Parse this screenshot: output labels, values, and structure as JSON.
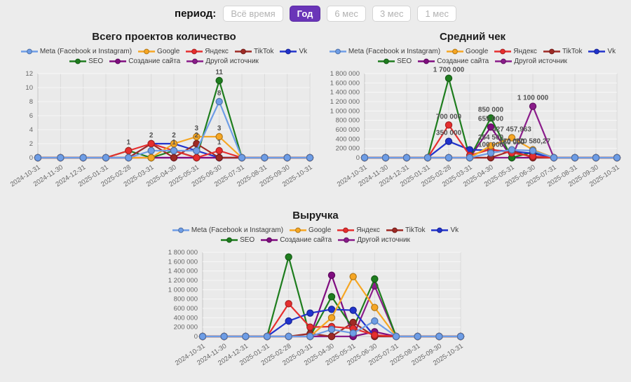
{
  "period_bar": {
    "label": "период:",
    "buttons": [
      {
        "label": "Всё время",
        "selected": false
      },
      {
        "label": "Год",
        "selected": true
      },
      {
        "label": "6 мес",
        "selected": false
      },
      {
        "label": "3 мес",
        "selected": false
      },
      {
        "label": "1 мес",
        "selected": false
      }
    ]
  },
  "colors": {
    "page_bg": "#ececec",
    "selected_button": "#6a35b8",
    "grid_vertical": "#d9d9d9",
    "grid_horizontal": "#f7f7f7",
    "axis_text": "#666666",
    "data_label": "#525252"
  },
  "chart_data": [
    {
      "type": "line",
      "title": "Всего проектов количество",
      "xlabel": "",
      "ylabel": "",
      "ylim": [
        0,
        12
      ],
      "ytick_step": 2,
      "grid": true,
      "legend_position": "top",
      "categories": [
        "2024-10-31",
        "2024-11-30",
        "2024-12-31",
        "2025-01-31",
        "2025-02-28",
        "2025-03-31",
        "2025-04-30",
        "2025-05-31",
        "2025-06-30",
        "2025-07-31",
        "2025-08-31",
        "2025-09-30",
        "2025-10-31"
      ],
      "series": [
        {
          "name": "Meta (Facebook и Instagram)",
          "color": "#6e9de6",
          "values": [
            0,
            0,
            0,
            0,
            0,
            1,
            1,
            1,
            8,
            0,
            0,
            0,
            0
          ],
          "labels": [
            null,
            null,
            null,
            null,
            null,
            null,
            "1",
            null,
            "8",
            null,
            null,
            null,
            null
          ]
        },
        {
          "name": "Google",
          "color": "#f6a623",
          "values": [
            0,
            0,
            0,
            0,
            0,
            0,
            2,
            3,
            3,
            0,
            0,
            0,
            0
          ],
          "labels": [
            null,
            null,
            null,
            null,
            null,
            null,
            null,
            "3",
            "3",
            null,
            null,
            null,
            null
          ]
        },
        {
          "name": "Яндекс",
          "color": "#e62e2e",
          "values": [
            0,
            0,
            0,
            0,
            1,
            2,
            1,
            0,
            1,
            0,
            0,
            0,
            0
          ],
          "labels": [
            null,
            null,
            null,
            null,
            "1",
            "2",
            null,
            null,
            "1",
            null,
            null,
            null,
            null
          ]
        },
        {
          "name": "TikTok",
          "color": "#9e2a25",
          "values": [
            0,
            0,
            0,
            0,
            0,
            2,
            0,
            2,
            0,
            0,
            0,
            0,
            0
          ],
          "labels": [
            null,
            null,
            null,
            null,
            null,
            null,
            null,
            "2",
            null,
            null,
            null,
            null,
            null
          ]
        },
        {
          "name": "Vk",
          "color": "#2133cc",
          "values": [
            0,
            0,
            0,
            0,
            0,
            2,
            2,
            1,
            0,
            0,
            0,
            0,
            0
          ],
          "labels": [
            null,
            null,
            null,
            null,
            null,
            null,
            "2",
            null,
            null,
            null,
            null,
            null,
            null
          ]
        },
        {
          "name": "SEO",
          "color": "#1e7d1e",
          "values": [
            0,
            0,
            0,
            0,
            1,
            0,
            1,
            0,
            11,
            0,
            0,
            0,
            0
          ],
          "labels": [
            null,
            null,
            null,
            null,
            null,
            null,
            null,
            null,
            "11",
            null,
            null,
            null,
            null
          ]
        },
        {
          "name": "Создание сайта",
          "color": "#800d80",
          "values": [
            0,
            0,
            0,
            0,
            0,
            0,
            0,
            0,
            0,
            0,
            0,
            0,
            0
          ],
          "labels": [
            null,
            null,
            null,
            null,
            null,
            null,
            null,
            null,
            null,
            null,
            null,
            null,
            null
          ]
        },
        {
          "name": "Другой источник",
          "color": "#8a1c8a",
          "values": [
            0,
            0,
            0,
            0,
            0,
            0,
            0,
            0,
            0,
            0,
            0,
            0,
            0
          ],
          "labels": [
            null,
            null,
            null,
            null,
            null,
            null,
            null,
            null,
            null,
            null,
            null,
            null,
            null
          ]
        }
      ]
    },
    {
      "type": "line",
      "title": "Средний чек",
      "xlabel": "",
      "ylabel": "",
      "ylim": [
        0,
        1800000
      ],
      "ytick_step": 200000,
      "grid": true,
      "legend_position": "top",
      "categories": [
        "2024-10-31",
        "2024-11-30",
        "2024-12-31",
        "2025-01-31",
        "2025-02-28",
        "2025-03-31",
        "2025-04-30",
        "2025-05-31",
        "2025-06-30",
        "2025-07-31",
        "2025-08-31",
        "2025-09-30",
        "2025-10-31"
      ],
      "series": [
        {
          "name": "Meta (Facebook и Instagram)",
          "color": "#6e9de6",
          "values": [
            0,
            0,
            0,
            0,
            0,
            0,
            100000,
            170000,
            150000,
            0,
            0,
            0,
            0
          ],
          "labels": [
            null,
            null,
            null,
            null,
            null,
            null,
            "100 000",
            "170 000",
            null,
            null,
            null,
            null,
            null
          ]
        },
        {
          "name": "Google",
          "color": "#f6a623",
          "values": [
            0,
            0,
            0,
            0,
            0,
            0,
            254500,
            427457.963,
            170580.27,
            0,
            0,
            0,
            0
          ],
          "labels": [
            null,
            null,
            null,
            null,
            null,
            null,
            "254 500",
            "427 457,963",
            "170 580,27",
            null,
            null,
            null,
            null
          ]
        },
        {
          "name": "Яндекс",
          "color": "#e62e2e",
          "values": [
            0,
            0,
            0,
            0,
            700000,
            50000,
            180000,
            100000,
            30000,
            0,
            0,
            0,
            0
          ],
          "labels": [
            null,
            null,
            null,
            null,
            "700 000",
            null,
            null,
            null,
            null,
            null,
            null,
            null,
            null
          ]
        },
        {
          "name": "TikTok",
          "color": "#9e2a25",
          "values": [
            0,
            0,
            0,
            0,
            0,
            0,
            0,
            150000,
            0,
            0,
            0,
            0,
            0
          ],
          "labels": [
            null,
            null,
            null,
            null,
            null,
            null,
            null,
            "150 000",
            null,
            null,
            null,
            null,
            null
          ]
        },
        {
          "name": "Vk",
          "color": "#2133cc",
          "values": [
            0,
            0,
            0,
            0,
            350000,
            170000,
            160000,
            140000,
            90000,
            0,
            0,
            0,
            0
          ],
          "labels": [
            null,
            null,
            null,
            null,
            "350 000",
            null,
            null,
            null,
            null,
            null,
            null,
            null,
            null
          ]
        },
        {
          "name": "SEO",
          "color": "#1e7d1e",
          "values": [
            0,
            0,
            0,
            0,
            1700000,
            0,
            850000,
            0,
            120000,
            0,
            0,
            0,
            0
          ],
          "labels": [
            null,
            null,
            null,
            null,
            "1 700 000",
            null,
            "850 000",
            null,
            null,
            null,
            null,
            null,
            null
          ]
        },
        {
          "name": "Создание сайта",
          "color": "#800d80",
          "values": [
            0,
            0,
            0,
            0,
            0,
            0,
            655000,
            0,
            0,
            0,
            0,
            0,
            0
          ],
          "labels": [
            null,
            null,
            null,
            null,
            null,
            null,
            "655 000",
            null,
            null,
            null,
            null,
            null,
            null
          ]
        },
        {
          "name": "Другой источник",
          "color": "#8a1c8a",
          "values": [
            0,
            0,
            0,
            0,
            0,
            0,
            0,
            0,
            1100000,
            0,
            0,
            0,
            0
          ],
          "labels": [
            null,
            null,
            null,
            null,
            null,
            null,
            null,
            null,
            "1 100 000",
            null,
            null,
            null,
            null
          ]
        }
      ]
    },
    {
      "type": "line",
      "title": "Выручка",
      "xlabel": "",
      "ylabel": "",
      "ylim": [
        0,
        1800000
      ],
      "ytick_step": 200000,
      "grid": true,
      "legend_position": "top",
      "categories": [
        "2024-10-31",
        "2024-11-30",
        "2024-12-31",
        "2025-01-31",
        "2025-02-28",
        "2025-03-31",
        "2025-04-30",
        "2025-05-31",
        "2025-06-30",
        "2025-07-31",
        "2025-08-31",
        "2025-09-30",
        "2025-10-31"
      ],
      "series": [
        {
          "name": "Meta (Facebook и Instagram)",
          "color": "#6e9de6",
          "values": [
            0,
            0,
            0,
            0,
            0,
            0,
            150000,
            70000,
            330000,
            0,
            0,
            0,
            0
          ],
          "labels": [
            null,
            null,
            null,
            null,
            null,
            null,
            null,
            null,
            null,
            null,
            null,
            null,
            null
          ]
        },
        {
          "name": "Google",
          "color": "#f6a623",
          "values": [
            0,
            0,
            0,
            0,
            0,
            0,
            400000,
            1280000,
            620000,
            0,
            0,
            0,
            0
          ],
          "labels": [
            null,
            null,
            null,
            null,
            null,
            null,
            null,
            null,
            null,
            null,
            null,
            null,
            null
          ]
        },
        {
          "name": "Яндекс",
          "color": "#e62e2e",
          "values": [
            0,
            0,
            0,
            0,
            700000,
            200000,
            210000,
            170000,
            30000,
            0,
            0,
            0,
            0
          ],
          "labels": [
            null,
            null,
            null,
            null,
            null,
            null,
            null,
            null,
            null,
            null,
            null,
            null,
            null
          ]
        },
        {
          "name": "TikTok",
          "color": "#9e2a25",
          "values": [
            0,
            0,
            0,
            0,
            0,
            60000,
            0,
            300000,
            0,
            0,
            0,
            0,
            0
          ],
          "labels": [
            null,
            null,
            null,
            null,
            null,
            null,
            null,
            null,
            null,
            null,
            null,
            null,
            null
          ]
        },
        {
          "name": "Vk",
          "color": "#2133cc",
          "values": [
            0,
            0,
            0,
            0,
            330000,
            500000,
            580000,
            560000,
            0,
            0,
            0,
            0,
            0
          ],
          "labels": [
            null,
            null,
            null,
            null,
            null,
            null,
            null,
            null,
            null,
            null,
            null,
            null,
            null
          ]
        },
        {
          "name": "SEO",
          "color": "#1e7d1e",
          "values": [
            0,
            0,
            0,
            0,
            1700000,
            0,
            850000,
            170000,
            1230000,
            0,
            0,
            0,
            0
          ],
          "labels": [
            null,
            null,
            null,
            null,
            null,
            null,
            null,
            null,
            null,
            null,
            null,
            null,
            null
          ]
        },
        {
          "name": "Создание сайта",
          "color": "#800d80",
          "values": [
            0,
            0,
            0,
            0,
            0,
            0,
            1310000,
            0,
            100000,
            0,
            0,
            0,
            0
          ],
          "labels": [
            null,
            null,
            null,
            null,
            null,
            null,
            null,
            null,
            null,
            null,
            null,
            null,
            null
          ]
        },
        {
          "name": "Другой источник",
          "color": "#8a1c8a",
          "values": [
            0,
            0,
            0,
            0,
            0,
            0,
            0,
            0,
            1080000,
            0,
            0,
            0,
            0
          ],
          "labels": [
            null,
            null,
            null,
            null,
            null,
            null,
            null,
            null,
            null,
            null,
            null,
            null,
            null
          ]
        }
      ]
    }
  ]
}
